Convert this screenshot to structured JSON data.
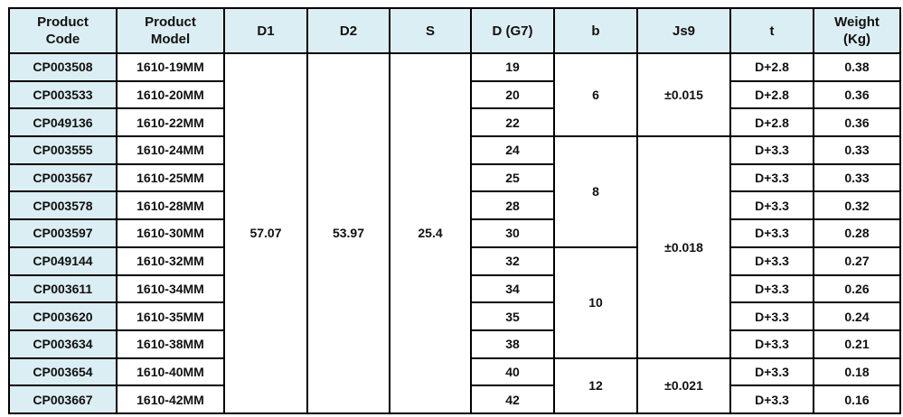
{
  "header_color": "#dbeef4",
  "headers": [
    [
      "Product",
      "Code"
    ],
    [
      "Product",
      "Model"
    ],
    [
      "D1"
    ],
    [
      "D2"
    ],
    [
      "S"
    ],
    [
      "D (G7)"
    ],
    [
      "b"
    ],
    [
      "Js9"
    ],
    [
      "t"
    ],
    [
      "Weight",
      "(Kg)"
    ]
  ],
  "shared": {
    "D1": "57.07",
    "D2": "53.97",
    "S": "25.4"
  },
  "b_groups": [
    {
      "value": "6",
      "rows": 3
    },
    {
      "value": "8",
      "rows": 4
    },
    {
      "value": "10",
      "rows": 4
    },
    {
      "value": "12",
      "rows": 2
    }
  ],
  "js9_groups": [
    {
      "value": "±0.015",
      "rows": 3
    },
    {
      "value": "±0.018",
      "rows": 8
    },
    {
      "value": "±0.021",
      "rows": 2
    }
  ],
  "rows": [
    {
      "code": "CP003508",
      "model": "1610-19MM",
      "d": "19",
      "t": "D+2.8",
      "weight": "0.38"
    },
    {
      "code": "CP003533",
      "model": "1610-20MM",
      "d": "20",
      "t": "D+2.8",
      "weight": "0.36"
    },
    {
      "code": "CP049136",
      "model": "1610-22MM",
      "d": "22",
      "t": "D+2.8",
      "weight": "0.36"
    },
    {
      "code": "CP003555",
      "model": "1610-24MM",
      "d": "24",
      "t": "D+3.3",
      "weight": "0.33"
    },
    {
      "code": "CP003567",
      "model": "1610-25MM",
      "d": "25",
      "t": "D+3.3",
      "weight": "0.33"
    },
    {
      "code": "CP003578",
      "model": "1610-28MM",
      "d": "28",
      "t": "D+3.3",
      "weight": "0.32"
    },
    {
      "code": "CP003597",
      "model": "1610-30MM",
      "d": "30",
      "t": "D+3.3",
      "weight": "0.28"
    },
    {
      "code": "CP049144",
      "model": "1610-32MM",
      "d": "32",
      "t": "D+3.3",
      "weight": "0.27"
    },
    {
      "code": "CP003611",
      "model": "1610-34MM",
      "d": "34",
      "t": "D+3.3",
      "weight": "0.26"
    },
    {
      "code": "CP003620",
      "model": "1610-35MM",
      "d": "35",
      "t": "D+3.3",
      "weight": "0.24"
    },
    {
      "code": "CP003634",
      "model": "1610-38MM",
      "d": "38",
      "t": "D+3.3",
      "weight": "0.21"
    },
    {
      "code": "CP003654",
      "model": "1610-40MM",
      "d": "40",
      "t": "D+3.3",
      "weight": "0.18"
    },
    {
      "code": "CP003667",
      "model": "1610-42MM",
      "d": "42",
      "t": "D+3.3",
      "weight": "0.16"
    }
  ]
}
